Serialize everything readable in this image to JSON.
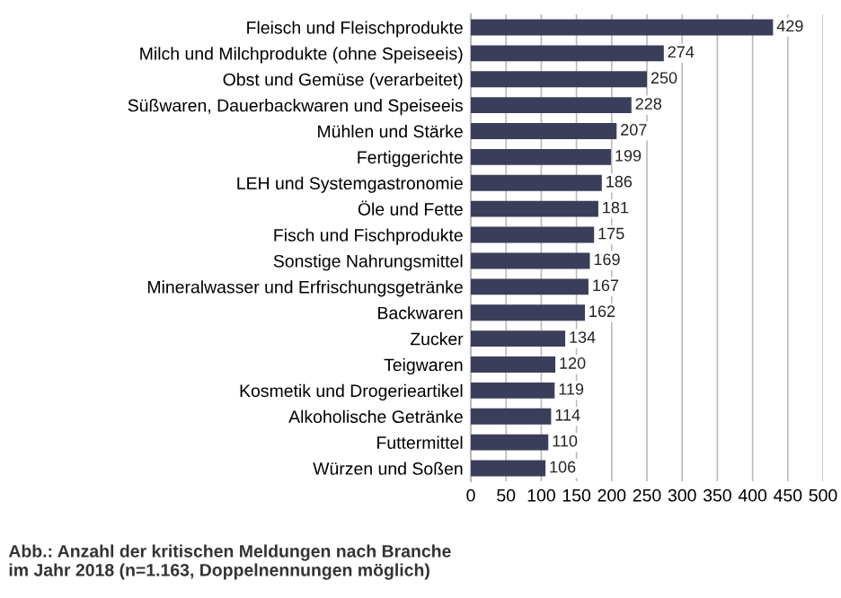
{
  "chart_data": {
    "type": "bar",
    "orientation": "horizontal",
    "categories": [
      "Fleisch und Fleischprodukte",
      "Milch und Milchprodukte (ohne Speiseeis)",
      "Obst und Gemüse (verarbeitet)",
      "Süßwaren, Dauerbackwaren und Speiseeis",
      "Mühlen und Stärke",
      "Fertiggerichte",
      "LEH und Systemgastronomie",
      "Öle und Fette",
      "Fisch und Fischprodukte",
      "Sonstige Nahrungsmittel",
      "Mineralwasser und Erfrischungsgetränke",
      "Backwaren",
      "Zucker",
      "Teigwaren",
      "Kosmetik und Drogerieartikel",
      "Alkoholische Getränke",
      "Futtermittel",
      "Würzen und Soßen"
    ],
    "values": [
      429,
      274,
      250,
      228,
      207,
      199,
      186,
      181,
      175,
      169,
      167,
      162,
      134,
      120,
      119,
      114,
      110,
      106
    ],
    "color": "#3b3e5b",
    "data_labels": true,
    "xlim": [
      0,
      500
    ],
    "xticks": [
      0,
      50,
      100,
      150,
      200,
      250,
      300,
      350,
      400,
      450,
      500
    ],
    "grid": "x",
    "annotations": [
      "Abb.: Anzahl der kritischen Meldungen nach Branche\nim Jahr 2018 (n=1.163, Doppelnennungen möglich)"
    ]
  }
}
